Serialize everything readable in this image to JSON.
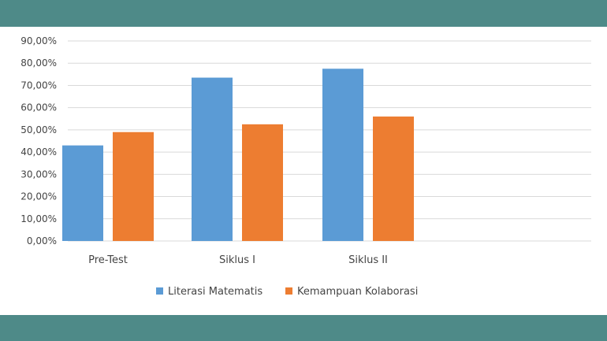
{
  "chart_data": {
    "type": "bar",
    "categories": [
      "Pre-Test",
      "Siklus I",
      "Siklus II"
    ],
    "series": [
      {
        "name": "Literasi Matematis",
        "values": [
          43.0,
          73.5,
          77.5
        ],
        "color": "#5b9bd5"
      },
      {
        "name": "Kemampuan Kolaborasi",
        "values": [
          49.0,
          52.5,
          56.0
        ],
        "color": "#ed7d31"
      }
    ],
    "ylim": [
      0,
      90
    ],
    "yticks": [
      "0,00%",
      "10,00%",
      "20,00%",
      "30,00%",
      "40,00%",
      "50,00%",
      "60,00%",
      "70,00%",
      "80,00%",
      "90,00%"
    ],
    "grid": true,
    "legend_position": "bottom",
    "colors": {
      "band": "#4e8a88",
      "grid": "#d9d9d9",
      "text": "#444444"
    }
  }
}
